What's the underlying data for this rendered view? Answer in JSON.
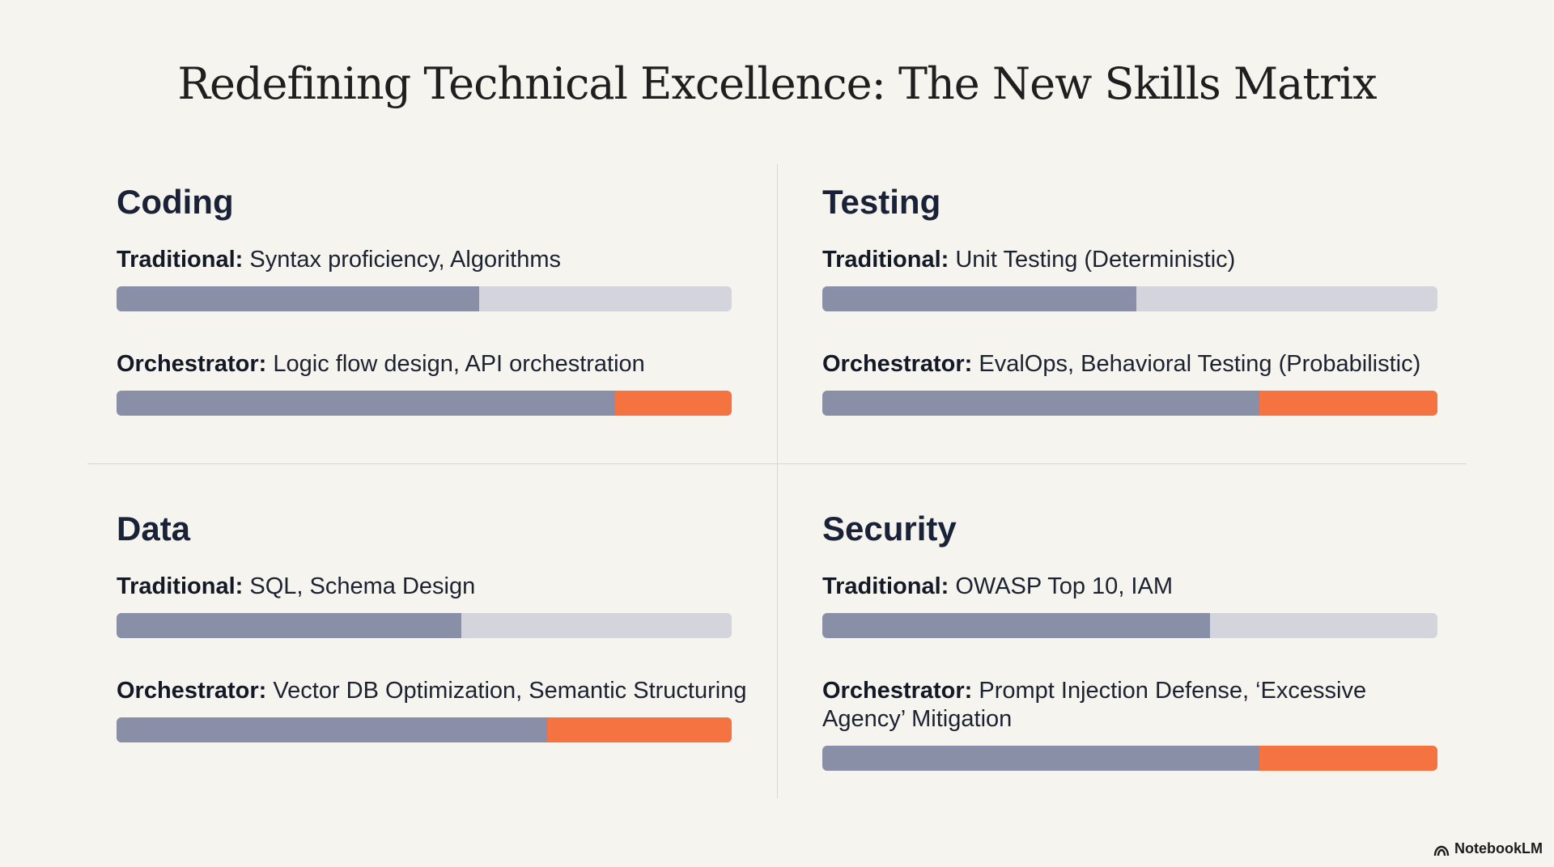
{
  "title": "Redefining Technical Excellence: The New Skills Matrix",
  "colors": {
    "background": "#f5f4ef",
    "track": "#d3d4dc",
    "base_fill": "#8a8fa8",
    "accent_fill": "#f47340"
  },
  "quadrants": [
    {
      "heading": "Coding",
      "traditional": {
        "label": "Traditional:",
        "text": " Syntax proficiency, Algorithms",
        "level": 0.59
      },
      "orchestrator": {
        "label": "Orchestrator:",
        "text": " Logic flow design, API orchestration",
        "base_level": 0.81,
        "accent_level": 0.19
      }
    },
    {
      "heading": "Testing",
      "traditional": {
        "label": "Traditional:",
        "text": " Unit Testing (Deterministic)",
        "level": 0.51
      },
      "orchestrator": {
        "label": "Orchestrator:",
        "text": " EvalOps, Behavioral Testing (Probabilistic)",
        "base_level": 0.71,
        "accent_level": 0.29
      }
    },
    {
      "heading": "Data",
      "traditional": {
        "label": "Traditional:",
        "text": " SQL, Schema Design",
        "level": 0.56
      },
      "orchestrator": {
        "label": "Orchestrator:",
        "text": " Vector DB Optimization, Semantic Structuring",
        "base_level": 0.7,
        "accent_level": 0.3
      }
    },
    {
      "heading": "Security",
      "traditional": {
        "label": "Traditional:",
        "text": " OWASP Top 10, IAM",
        "level": 0.63
      },
      "orchestrator": {
        "label": "Orchestrator:",
        "text": " Prompt Injection Defense, ‘Excessive Agency’ Mitigation",
        "base_level": 0.71,
        "accent_level": 0.29
      }
    }
  ],
  "footer": {
    "brand": "NotebookLM",
    "icon": "notebooklm-logo-icon"
  }
}
